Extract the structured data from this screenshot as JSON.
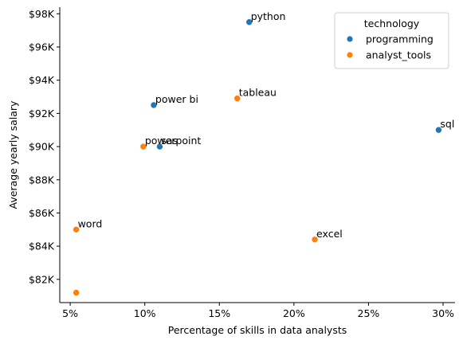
{
  "chart_data": {
    "type": "scatter",
    "title": "",
    "xlabel": "Percentage of skills in data analysts",
    "ylabel": "Average yearly salary",
    "xlim": [
      4.3,
      30.8
    ],
    "ylim": [
      80.6,
      98.4
    ],
    "x_ticks": [
      5,
      10,
      15,
      20,
      25,
      30
    ],
    "x_tick_labels": [
      "5%",
      "10%",
      "15%",
      "20%",
      "25%",
      "30%"
    ],
    "y_ticks": [
      82,
      84,
      86,
      88,
      90,
      92,
      94,
      96,
      98
    ],
    "y_tick_labels": [
      "$82K",
      "$84K",
      "$86K",
      "$88K",
      "$90K",
      "$92K",
      "$94K",
      "$96K",
      "$98K"
    ],
    "grid": false,
    "legend": {
      "title": "technology",
      "placement": "top-right",
      "entries": [
        {
          "name": "programming",
          "color": "#1f77b4"
        },
        {
          "name": "analyst_tools",
          "color": "#ff7f0e"
        }
      ]
    },
    "points": [
      {
        "label": "python",
        "x": 17.0,
        "y": 97.5,
        "category": "programming"
      },
      {
        "label": "sql",
        "x": 29.7,
        "y": 91.0,
        "category": "programming"
      },
      {
        "label": "power bi",
        "x": 10.6,
        "y": 92.5,
        "category": "programming"
      },
      {
        "label": "sas",
        "x": 11.0,
        "y": 90.0,
        "category": "programming"
      },
      {
        "label": "tableau",
        "x": 16.2,
        "y": 92.9,
        "category": "analyst_tools"
      },
      {
        "label": "powerpoint",
        "x": 9.9,
        "y": 90.0,
        "category": "analyst_tools"
      },
      {
        "label": "word",
        "x": 5.4,
        "y": 85.0,
        "category": "analyst_tools"
      },
      {
        "label": "excel",
        "x": 21.4,
        "y": 84.4,
        "category": "analyst_tools"
      },
      {
        "label": "",
        "x": 5.4,
        "y": 81.2,
        "category": "analyst_tools"
      }
    ]
  }
}
